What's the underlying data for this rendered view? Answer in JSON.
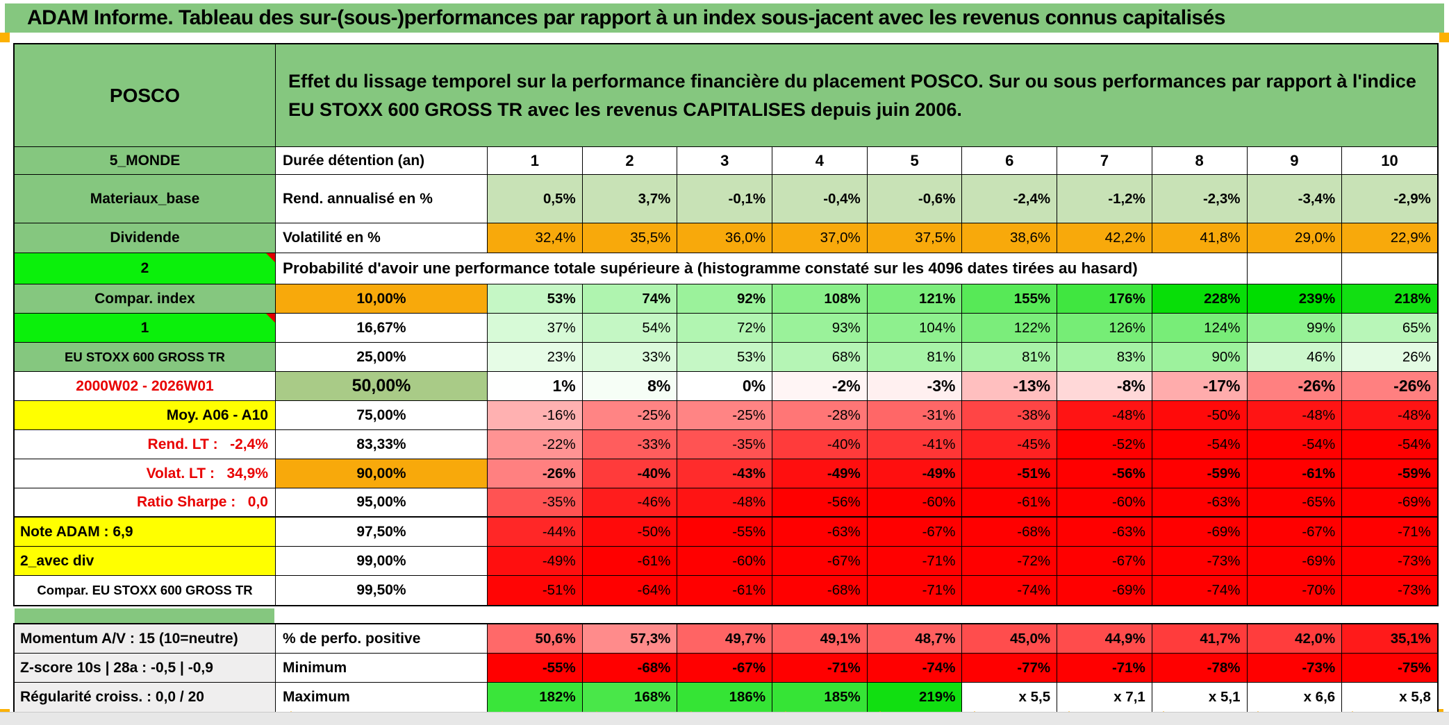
{
  "title": "ADAM Informe. Tableau des sur-(sous-)performances par rapport à un index sous-jacent avec les revenus connus capitalisés",
  "header": {
    "ticker": "POSCO",
    "description": "Effet du lissage temporel sur la performance financière du placement POSCO. Sur ou sous performances par rapport à l'indice EU STOXX 600 GROSS TR avec les revenus CAPITALISES depuis juin 2006."
  },
  "columns": [
    "1",
    "2",
    "3",
    "4",
    "5",
    "6",
    "7",
    "8",
    "9",
    "10"
  ],
  "rows": [
    {
      "kind": "colhead",
      "a": "5_MONDE",
      "aStyle": "green",
      "b": "Durée détention (an)",
      "bStyle": "left",
      "h": "h40"
    },
    {
      "kind": "fixed",
      "a": "Materiaux_base",
      "aStyle": "green",
      "b": "Rend. annualisé en %",
      "bStyle": "left",
      "h": "h70",
      "cellClass": "lightgreen",
      "bold": true,
      "cells": [
        "0,5%",
        "3,7%",
        "-0,1%",
        "-0,4%",
        "-0,6%",
        "-2,4%",
        "-1,2%",
        "-2,3%",
        "-3,4%",
        "-2,9%"
      ]
    },
    {
      "kind": "fixed",
      "a": "Dividende",
      "aStyle": "green",
      "b": "Volatilité en %",
      "bStyle": "left",
      "h": "h43",
      "cellClass": "orangebg",
      "bold": false,
      "cells": [
        "32,4%",
        "35,5%",
        "36,0%",
        "37,0%",
        "37,5%",
        "38,6%",
        "42,2%",
        "41,8%",
        "29,0%",
        "22,9%"
      ]
    },
    {
      "kind": "note",
      "a": "2",
      "aStyle": "bright",
      "marker": true,
      "h": "h45",
      "note": "Probabilité d'avoir une performance totale supérieure à (histogramme constaté sur les 4096 dates tirées au hasard)"
    },
    {
      "kind": "cond",
      "a": "Compar. index",
      "aStyle": "green",
      "b": "10,00%",
      "bStyle": "orange",
      "bold": true,
      "values": [
        53,
        74,
        92,
        108,
        121,
        155,
        176,
        228,
        239,
        218
      ]
    },
    {
      "kind": "cond",
      "a": "1",
      "aStyle": "bright",
      "marker": true,
      "b": "16,67%",
      "values": [
        37,
        54,
        72,
        93,
        104,
        122,
        126,
        124,
        99,
        65
      ]
    },
    {
      "kind": "cond",
      "a": "EU STOXX 600 GROSS TR",
      "aStyle": "green smaller",
      "b": "25,00%",
      "values": [
        23,
        33,
        53,
        68,
        81,
        81,
        83,
        90,
        46,
        26
      ]
    },
    {
      "kind": "cond",
      "a": "2000W02 - 2026W01",
      "aStyle": "redtext",
      "b": "50,00%",
      "bStyle": "sage big",
      "bold": true,
      "big": true,
      "values": [
        1,
        8,
        0,
        -2,
        -3,
        -13,
        -8,
        -17,
        -26,
        -26
      ]
    },
    {
      "kind": "cond",
      "a": "Moy. A06 - A10",
      "aStyle": "yellow right",
      "b": "75,00%",
      "values": [
        -16,
        -25,
        -25,
        -28,
        -31,
        -38,
        -48,
        -50,
        -48,
        -48
      ]
    },
    {
      "kind": "cond",
      "a": "Rend. LT :   -2,4%",
      "aStyle": "redtext right",
      "b": "83,33%",
      "values": [
        -22,
        -33,
        -35,
        -40,
        -41,
        -45,
        -52,
        -54,
        -54,
        -54
      ]
    },
    {
      "kind": "cond",
      "a": "Volat. LT :   34,9%",
      "aStyle": "redtext right",
      "b": "90,00%",
      "bStyle": "orange",
      "bold": true,
      "values": [
        -26,
        -40,
        -43,
        -49,
        -49,
        -51,
        -56,
        -59,
        -61,
        -59
      ]
    },
    {
      "kind": "cond",
      "a": "Ratio Sharpe :   0,0",
      "aStyle": "redtext right",
      "b": "95,00%",
      "thick": true,
      "values": [
        -35,
        -46,
        -48,
        -56,
        -60,
        -61,
        -60,
        -63,
        -65,
        -69
      ]
    },
    {
      "kind": "cond",
      "a": "Note ADAM : 6,9",
      "aStyle": "yellow left",
      "b": "97,50%",
      "values": [
        -44,
        -50,
        -55,
        -63,
        -67,
        -68,
        -63,
        -69,
        -67,
        -71
      ]
    },
    {
      "kind": "cond",
      "a": "2_avec div",
      "aStyle": "yellow left",
      "b": "99,00%",
      "values": [
        -49,
        -61,
        -60,
        -67,
        -71,
        -72,
        -67,
        -73,
        -69,
        -73
      ]
    },
    {
      "kind": "cond",
      "a": "Compar. EU STOXX 600 GROSS TR",
      "aStyle": "smaller",
      "b": "99,50%",
      "values": [
        -51,
        -64,
        -61,
        -68,
        -71,
        -74,
        -69,
        -74,
        -70,
        -73
      ]
    }
  ],
  "bottom_rows": [
    {
      "a": "Momentum A/V : 15 (10=neutre)",
      "b": "% de perfo. positive",
      "scale": "perfo",
      "cells": [
        {
          "t": "50,6%",
          "v": 50.6
        },
        {
          "t": "57,3%",
          "v": 57.3
        },
        {
          "t": "49,7%",
          "v": 49.7
        },
        {
          "t": "49,1%",
          "v": 49.1
        },
        {
          "t": "48,7%",
          "v": 48.7
        },
        {
          "t": "45,0%",
          "v": 45.0
        },
        {
          "t": "44,9%",
          "v": 44.9
        },
        {
          "t": "41,7%",
          "v": 41.7
        },
        {
          "t": "42,0%",
          "v": 42.0
        },
        {
          "t": "35,1%",
          "v": 35.1
        }
      ]
    },
    {
      "a": "Z-score 10s | 28a : -0,5 | -0,9",
      "b": "Minimum",
      "scale": "gr",
      "cells": [
        {
          "t": "-55%",
          "v": -55
        },
        {
          "t": "-68%",
          "v": -68
        },
        {
          "t": "-67%",
          "v": -67
        },
        {
          "t": "-71%",
          "v": -71
        },
        {
          "t": "-74%",
          "v": -74
        },
        {
          "t": "-77%",
          "v": -77
        },
        {
          "t": "-71%",
          "v": -71
        },
        {
          "t": "-78%",
          "v": -78
        },
        {
          "t": "-73%",
          "v": -73
        },
        {
          "t": "-75%",
          "v": -75
        }
      ]
    },
    {
      "a": "Régularité croiss. : 0,0 / 20",
      "b": "Maximum",
      "scale": "gr",
      "cells": [
        {
          "t": "182%",
          "v": 182
        },
        {
          "t": "168%",
          "v": 168
        },
        {
          "t": "186%",
          "v": 186
        },
        {
          "t": "185%",
          "v": 185
        },
        {
          "t": "219%",
          "v": 219
        },
        {
          "t": "x 5,5",
          "v": null
        },
        {
          "t": "x 7,1",
          "v": null
        },
        {
          "t": "x 5,1",
          "v": null
        },
        {
          "t": "x 6,6",
          "v": null
        },
        {
          "t": "x 5,8",
          "v": null
        }
      ]
    }
  ],
  "colors": {
    "green": "#85C77F",
    "bright_green": "#0BF00B",
    "sage": "#A9CB87",
    "orange": "#F8A90B",
    "yellow": "#FFFF00",
    "light_green": "#C8E2B6",
    "red_text": "#E80000",
    "gray_label": "#EFEEEE",
    "pos_scale": "#00DC00",
    "neg_scale": "#FF0000"
  }
}
